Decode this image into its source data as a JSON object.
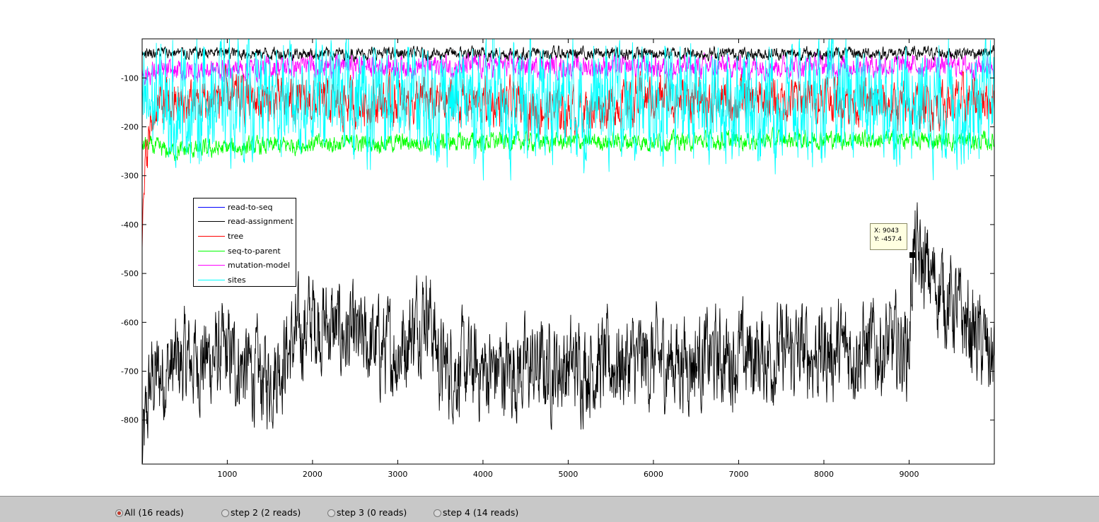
{
  "chart_data": {
    "type": "line",
    "title": "",
    "xlabel": "",
    "ylabel": "",
    "xlim": [
      1,
      10000
    ],
    "ylim": [
      -890,
      -20
    ],
    "xticks": [
      1000,
      2000,
      3000,
      4000,
      5000,
      6000,
      7000,
      8000,
      9000
    ],
    "yticks": [
      -100,
      -200,
      -300,
      -400,
      -500,
      -600,
      -700,
      -800
    ],
    "grid": false,
    "legend_position": "left-middle",
    "series": [
      {
        "name": "read-to-seq",
        "color": "#0000ff",
        "base": null,
        "noise": 0,
        "x": [],
        "y": []
      },
      {
        "name": "read-assignment",
        "color": "#000000",
        "base": -48,
        "noise": 12,
        "x": [
          0,
          2000,
          4000,
          6000,
          8000,
          10000
        ],
        "y": [
          -48,
          -50,
          -50,
          -50,
          -50,
          -48
        ]
      },
      {
        "name": "tree",
        "color": "#ff0000",
        "base": -150,
        "noise": 45,
        "x": [
          0,
          50,
          150,
          1000,
          2000,
          3000,
          4000,
          5000,
          6000,
          7000,
          8000,
          9000,
          10000
        ],
        "y": [
          -440,
          -250,
          -160,
          -140,
          -150,
          -150,
          -150,
          -170,
          -140,
          -150,
          -140,
          -160,
          -140
        ]
      },
      {
        "name": "seq-to-parent",
        "color": "#00ff00",
        "base": -230,
        "noise": 18,
        "x": [
          0,
          300,
          2000,
          4000,
          6000,
          8000,
          10000
        ],
        "y": [
          -235,
          -250,
          -235,
          -230,
          -230,
          -225,
          -230
        ]
      },
      {
        "name": "mutation-model",
        "color": "#ff00ff",
        "base": -75,
        "noise": 22,
        "x": [
          0,
          2000,
          4000,
          6000,
          8000,
          10000
        ],
        "y": [
          -90,
          -75,
          -75,
          -78,
          -75,
          -75
        ]
      },
      {
        "name": "sites",
        "color": "#00ffff",
        "base": -150,
        "noise": 110,
        "x": [
          0,
          2000,
          4000,
          6000,
          8000,
          10000
        ],
        "y": [
          -150,
          -140,
          -150,
          -150,
          -150,
          -150
        ]
      },
      {
        "name": "",
        "color": "#000000",
        "base": -680,
        "noise": 95,
        "x": [
          0,
          100,
          500,
          1000,
          1450,
          2000,
          2500,
          3000,
          3350,
          3500,
          4000,
          5000,
          6000,
          7000,
          8000,
          9000,
          9043,
          10000
        ],
        "y": [
          -880,
          -720,
          -680,
          -670,
          -720,
          -590,
          -640,
          -660,
          -560,
          -690,
          -700,
          -690,
          -680,
          -670,
          -660,
          -650,
          -457.4,
          -680
        ]
      }
    ],
    "datatip": {
      "x_label": "X: 9043",
      "y_label": "Y: -457.4",
      "x": 9043,
      "y": -457.4
    }
  },
  "controls": {
    "options": [
      {
        "label": "All (16 reads)",
        "checked": true
      },
      {
        "label": "step 2 (2 reads)",
        "checked": false
      },
      {
        "label": "step 3 (0 reads)",
        "checked": false
      },
      {
        "label": "step 4 (14 reads)",
        "checked": false
      }
    ]
  }
}
